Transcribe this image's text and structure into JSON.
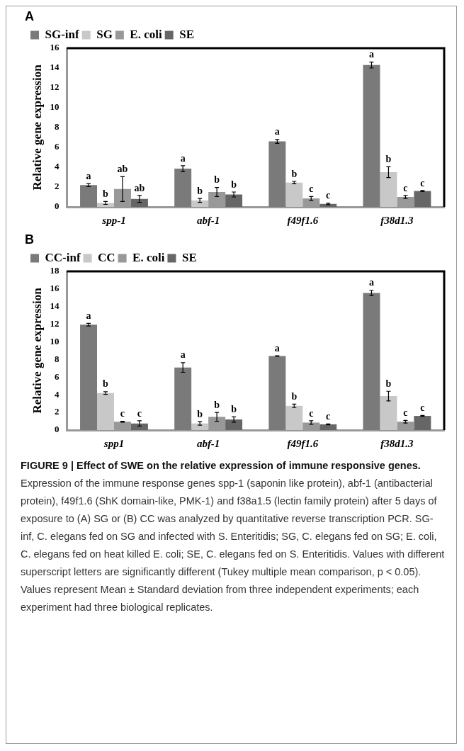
{
  "chart_data": [
    {
      "type": "bar",
      "title": "A",
      "ylabel": "Relative gene expression",
      "categories": [
        "spp-1",
        "abf-1",
        "f49f1.6",
        "f38d1.3"
      ],
      "ylim": [
        0,
        16
      ],
      "yticks": [
        0,
        2,
        4,
        6,
        8,
        10,
        12,
        14,
        16
      ],
      "grid": false,
      "legend": "top",
      "series": [
        {
          "name": "SG-inf",
          "color": "#7a7a7a",
          "values": [
            2.2,
            3.85,
            6.6,
            14.3
          ],
          "errors": [
            0.15,
            0.3,
            0.2,
            0.3
          ],
          "value_labels": [
            "a",
            "a",
            "a",
            "a"
          ]
        },
        {
          "name": "SG",
          "color": "#c8c8c8",
          "values": [
            0.4,
            0.65,
            2.45,
            3.5
          ],
          "errors": [
            0.15,
            0.2,
            0.12,
            0.55
          ],
          "value_labels": [
            "b",
            "b",
            "b",
            "b"
          ]
        },
        {
          "name": "E. coli",
          "color": "#989898",
          "values": [
            1.8,
            1.5,
            0.85,
            1.0
          ],
          "errors": [
            1.25,
            0.45,
            0.2,
            0.15
          ],
          "value_labels": [
            "ab",
            "b",
            "c",
            "c"
          ]
        },
        {
          "name": "SE",
          "color": "#666666",
          "values": [
            0.8,
            1.25,
            0.3,
            1.6
          ],
          "errors": [
            0.35,
            0.25,
            0.07,
            0.05
          ],
          "value_labels": [
            "ab",
            "b",
            "c",
            "c"
          ]
        }
      ]
    },
    {
      "type": "bar",
      "title": "B",
      "ylabel": "Relative gene expression",
      "categories": [
        "spp1",
        "abf-1",
        "f49f1.6",
        "f38d1.3"
      ],
      "ylim": [
        0,
        18
      ],
      "yticks": [
        0,
        2,
        4,
        6,
        8,
        10,
        12,
        14,
        16,
        18
      ],
      "grid": false,
      "legend": "top",
      "series": [
        {
          "name": "CC-inf",
          "color": "#7a7a7a",
          "values": [
            11.95,
            7.1,
            8.4,
            15.55
          ],
          "errors": [
            0.15,
            0.55,
            0.03,
            0.3
          ],
          "value_labels": [
            "a",
            "a",
            "a",
            "a"
          ]
        },
        {
          "name": "CC",
          "color": "#c8c8c8",
          "values": [
            4.2,
            0.75,
            2.75,
            3.85
          ],
          "errors": [
            0.15,
            0.2,
            0.2,
            0.55
          ],
          "value_labels": [
            "b",
            "b",
            "b",
            "b"
          ]
        },
        {
          "name": "E. coli",
          "color": "#989898",
          "values": [
            0.95,
            1.5,
            0.85,
            0.95
          ],
          "errors": [
            0.05,
            0.5,
            0.2,
            0.15
          ],
          "value_labels": [
            "c",
            "b",
            "c",
            "c"
          ]
        },
        {
          "name": "SE",
          "color": "#666666",
          "values": [
            0.75,
            1.2,
            0.65,
            1.6
          ],
          "errors": [
            0.3,
            0.3,
            0.05,
            0.05
          ],
          "value_labels": [
            "c",
            "b",
            "c",
            "c"
          ]
        }
      ],
      "annotations": [
        "FIGURE 9 | Effect of SWE on the relative expression of immune responsive genes.",
        "Expression of the immune response genes spp-1 (saponin like protein), abf-1 (antibacterial protein), f49f1.6 (ShK domain-like, PMK-1) and f38a1.5 (lectin family protein) after 5 days of exposure to (A) SG or (B) CC was analyzed by quantitative reverse transcription PCR. SG-inf, C. elegans fed on SG and infected with S. Enteritidis; SG, C. elegans fed on SG; E. coli, C. elegans fed on heat killed E. coli; SE, C. elegans fed on S. Enteritidis. Values with different superscript letters are significantly different (Tukey multiple mean comparison, p < 0.05). Values represent Mean ± Standard deviation from three independent experiments; each experiment had three biological replicates."
      ]
    }
  ]
}
